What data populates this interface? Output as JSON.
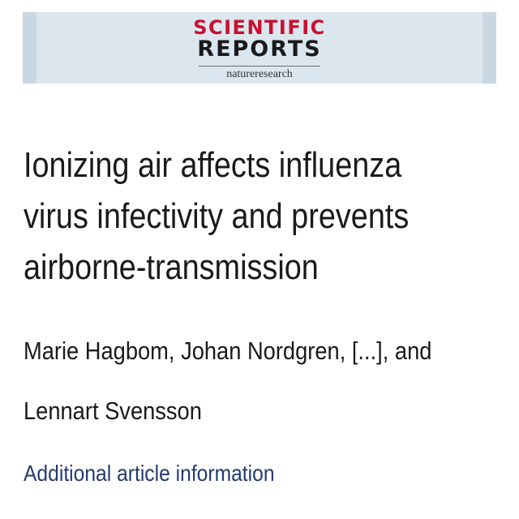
{
  "journal": {
    "name_line1": "SCIENTIFIC",
    "name_line2": "REPORTS",
    "publisher": "natureresearch"
  },
  "article": {
    "title_lines": [
      "Ionizing air affects influenza",
      "virus infectivity and prevents",
      "airborne-transmission"
    ],
    "author_lines": [
      "Marie Hagbom, Johan Nordgren, [...], and",
      "Lennart Svensson"
    ],
    "additional_info_link": "Additional article information"
  },
  "colors": {
    "banner_background": "#dbe6ef",
    "logo_red": "#c8102e",
    "link_blue": "#233a6e",
    "text": "#1a1a1a"
  }
}
